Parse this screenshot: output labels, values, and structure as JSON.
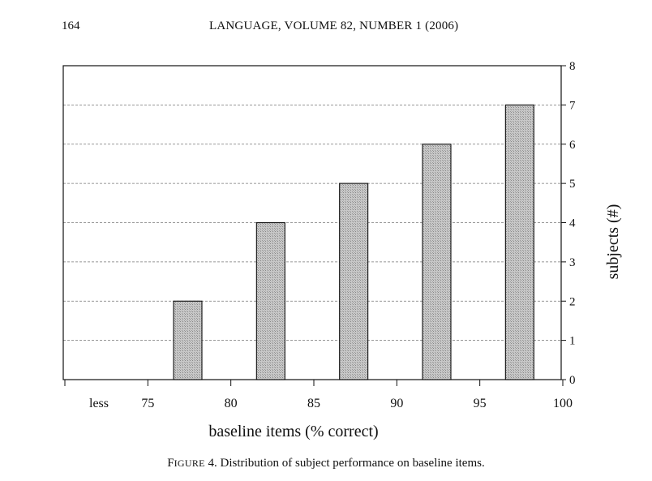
{
  "page": {
    "page_number": "164",
    "running_head": "LANGUAGE, VOLUME 82, NUMBER 1 (2006)"
  },
  "caption": {
    "figure_label_first": "F",
    "figure_label_rest": "IGURE",
    "figure_number": " 4.",
    "text": " Distribution of subject performance on baseline items."
  },
  "colors": {
    "bar_fill": "#c8c8c8",
    "bar_stroke": "#111111",
    "grid": "#777777"
  },
  "chart_data": {
    "type": "bar",
    "xlabel": "baseline items (% correct)",
    "ylabel": "subjects (#)",
    "x_tick_labels": [
      "less",
      "75",
      "80",
      "85",
      "90",
      "95",
      "100"
    ],
    "categories": [
      "less–75",
      "75–80",
      "80–85",
      "85–90",
      "90–95",
      "95–100"
    ],
    "values": [
      0,
      2,
      4,
      5,
      6,
      7
    ],
    "ylim": [
      0,
      8
    ],
    "y_ticks": [
      0,
      1,
      2,
      3,
      4,
      5,
      6,
      7,
      8
    ],
    "y_axis_side": "right",
    "grid": true,
    "legend": "none"
  }
}
